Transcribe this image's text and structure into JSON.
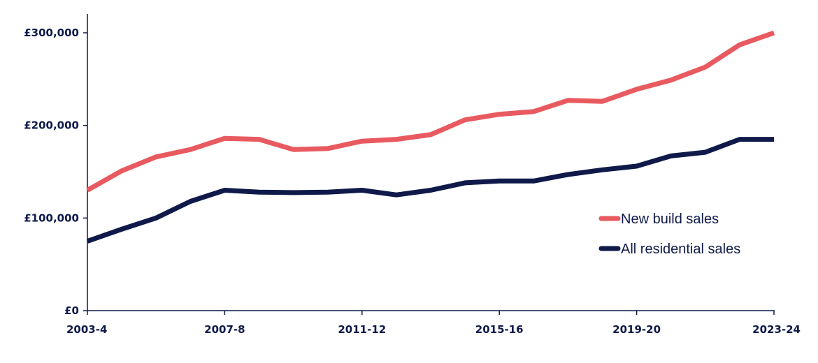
{
  "chart_data": {
    "type": "line",
    "title": "",
    "xlabel": "",
    "ylabel": "",
    "x": [
      "2003-4",
      "2004-5",
      "2005-6",
      "2006-7",
      "2007-8",
      "2008-9",
      "2009-10",
      "2010-11",
      "2011-12",
      "2012-13",
      "2013-14",
      "2014-15",
      "2015-16",
      "2016-17",
      "2017-18",
      "2018-19",
      "2019-20",
      "2020-21",
      "2021-22",
      "2022-23",
      "2023-24"
    ],
    "x_tick_labels": [
      "2003-4",
      "2007-8",
      "2011-12",
      "2015-16",
      "2019-20",
      "2023-24"
    ],
    "ylim": [
      0,
      320000
    ],
    "y_ticks": [
      0,
      100000,
      200000,
      300000
    ],
    "y_tick_labels": [
      "£0",
      "£100,000",
      "£200,000",
      "£300,000"
    ],
    "grid": false,
    "legend": "right",
    "series": [
      {
        "name": "New build sales",
        "color": "#e85a60",
        "values": [
          130000,
          151000,
          166000,
          174000,
          186000,
          185000,
          174000,
          175000,
          183000,
          185000,
          190000,
          206000,
          212000,
          215000,
          227000,
          226000,
          239000,
          249000,
          263000,
          287000,
          300000
        ]
      },
      {
        "name": "All residential sales",
        "color": "#0f1a4a",
        "values": [
          75000,
          88000,
          100000,
          118000,
          130000,
          128000,
          127500,
          128000,
          130000,
          125000,
          130000,
          138000,
          140000,
          140000,
          147000,
          152000,
          156000,
          167000,
          171000,
          185000,
          185000
        ]
      }
    ]
  }
}
